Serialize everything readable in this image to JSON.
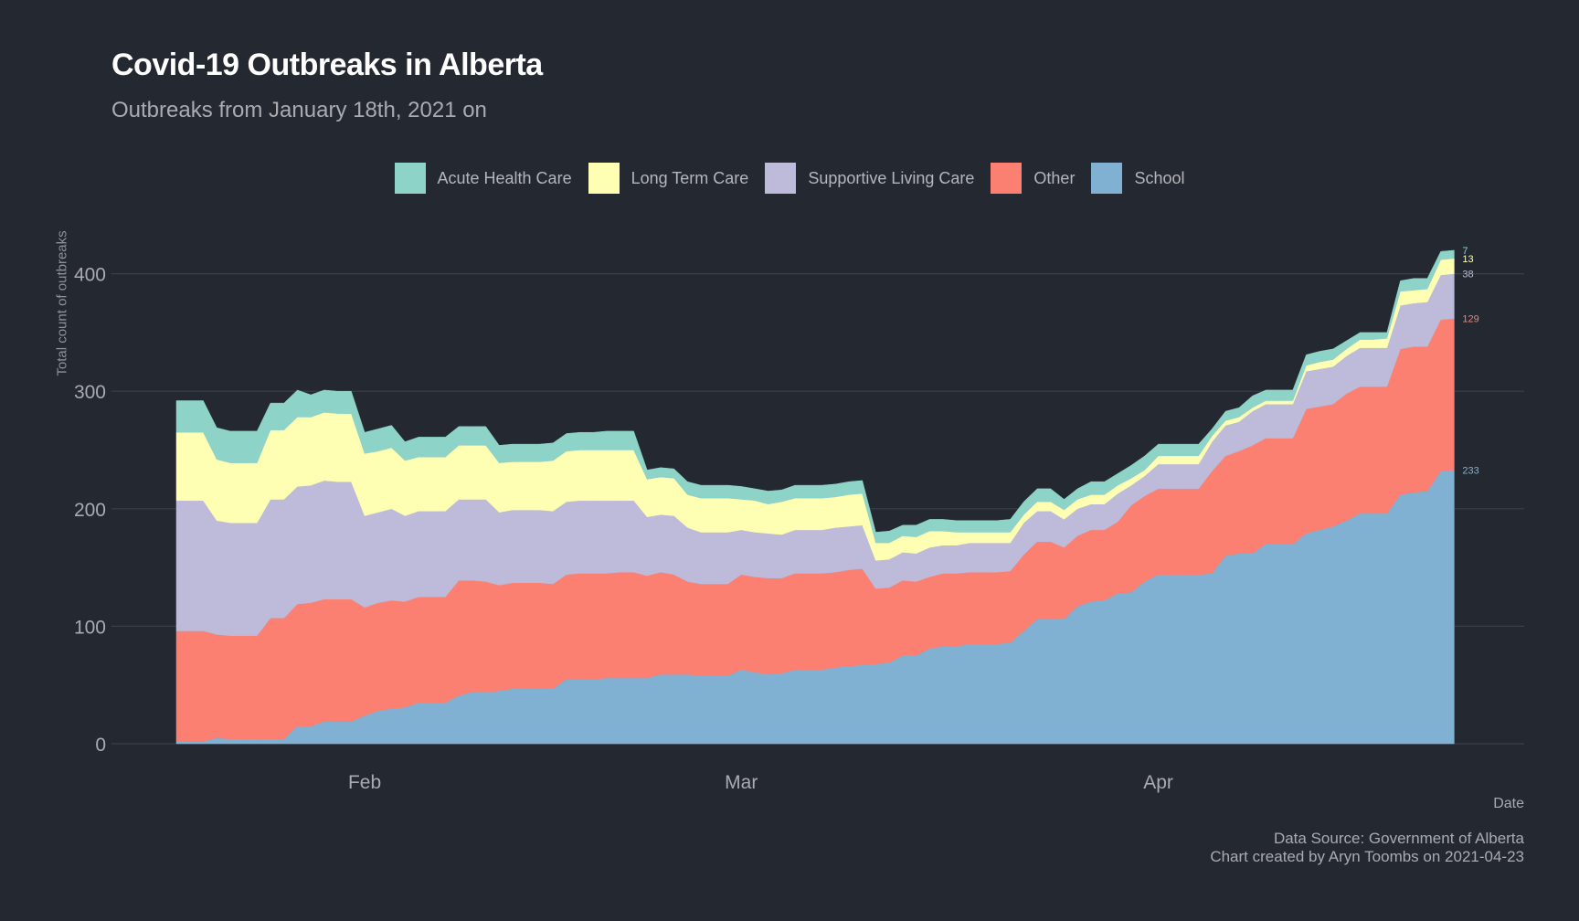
{
  "title": "Covid-19 Outbreaks in Alberta",
  "subtitle": "Outbreaks from January 18th, 2021 on",
  "caption": {
    "line1": "Data Source: Government of Alberta",
    "line2": "Chart created by Aryn Toombs on 2021-04-23"
  },
  "chart_data": {
    "type": "area",
    "stacked": true,
    "title": "Covid-19 Outbreaks in Alberta",
    "subtitle": "Outbreaks from January 18th, 2021 on",
    "xlabel": "Date",
    "ylabel": "Total count of outbreaks",
    "ylim": [
      0,
      430
    ],
    "yticks": [
      0,
      100,
      200,
      300,
      400
    ],
    "xticks": [
      {
        "date": "2021-02-01",
        "label": "Feb"
      },
      {
        "date": "2021-03-01",
        "label": "Mar"
      },
      {
        "date": "2021-04-01",
        "label": "Apr"
      }
    ],
    "grid": "horizontal",
    "legend_position": "top",
    "background": "#242831",
    "dates": [
      "2021-01-18",
      "2021-01-19",
      "2021-01-20",
      "2021-01-21",
      "2021-01-22",
      "2021-01-23",
      "2021-01-24",
      "2021-01-25",
      "2021-01-26",
      "2021-01-27",
      "2021-01-28",
      "2021-01-29",
      "2021-01-30",
      "2021-01-31",
      "2021-02-01",
      "2021-02-02",
      "2021-02-03",
      "2021-02-04",
      "2021-02-05",
      "2021-02-06",
      "2021-02-07",
      "2021-02-08",
      "2021-02-09",
      "2021-02-10",
      "2021-02-11",
      "2021-02-12",
      "2021-02-13",
      "2021-02-14",
      "2021-02-15",
      "2021-02-16",
      "2021-02-17",
      "2021-02-18",
      "2021-02-19",
      "2021-02-20",
      "2021-02-21",
      "2021-02-22",
      "2021-02-23",
      "2021-02-24",
      "2021-02-25",
      "2021-02-26",
      "2021-02-27",
      "2021-02-28",
      "2021-03-01",
      "2021-03-02",
      "2021-03-03",
      "2021-03-04",
      "2021-03-05",
      "2021-03-06",
      "2021-03-07",
      "2021-03-08",
      "2021-03-09",
      "2021-03-10",
      "2021-03-11",
      "2021-03-12",
      "2021-03-13",
      "2021-03-14",
      "2021-03-15",
      "2021-03-16",
      "2021-03-17",
      "2021-03-18",
      "2021-03-19",
      "2021-03-20",
      "2021-03-21",
      "2021-03-22",
      "2021-03-23",
      "2021-03-24",
      "2021-03-25",
      "2021-03-26",
      "2021-03-27",
      "2021-03-28",
      "2021-03-29",
      "2021-03-30",
      "2021-03-31",
      "2021-04-01",
      "2021-04-02",
      "2021-04-03",
      "2021-04-04",
      "2021-04-05",
      "2021-04-06",
      "2021-04-07",
      "2021-04-08",
      "2021-04-09",
      "2021-04-10",
      "2021-04-11",
      "2021-04-12",
      "2021-04-13",
      "2021-04-14",
      "2021-04-15",
      "2021-04-16",
      "2021-04-17",
      "2021-04-18",
      "2021-04-19",
      "2021-04-20",
      "2021-04-21",
      "2021-04-22",
      "2021-04-23"
    ],
    "series": [
      {
        "name": "School",
        "color": "#80b1d3",
        "end_label": "233",
        "values": [
          2,
          2,
          2,
          5,
          4,
          4,
          4,
          4,
          4,
          15,
          15,
          19,
          19,
          19,
          24,
          28,
          30,
          31,
          35,
          35,
          35,
          41,
          44,
          44,
          45,
          47,
          47,
          47,
          47,
          55,
          55,
          55,
          56,
          56,
          56,
          56,
          59,
          59,
          59,
          58,
          58,
          58,
          63,
          61,
          59,
          60,
          63,
          63,
          63,
          65,
          66,
          67,
          68,
          69,
          75,
          75,
          81,
          83,
          83,
          85,
          85,
          85,
          86,
          96,
          106,
          106,
          106,
          117,
          121,
          122,
          128,
          129,
          138,
          144,
          144,
          144,
          144,
          145,
          160,
          162,
          162,
          170,
          170,
          170,
          179,
          182,
          185,
          190,
          196,
          196,
          196,
          212,
          214,
          215,
          232,
          233
        ]
      },
      {
        "name": "Other",
        "color": "#fb8072",
        "end_label": "129",
        "values": [
          94,
          94,
          94,
          88,
          88,
          88,
          88,
          103,
          103,
          104,
          105,
          104,
          104,
          104,
          92,
          92,
          92,
          90,
          90,
          90,
          90,
          98,
          95,
          94,
          90,
          90,
          90,
          90,
          89,
          89,
          90,
          90,
          89,
          90,
          90,
          87,
          87,
          85,
          79,
          78,
          78,
          78,
          81,
          81,
          82,
          81,
          82,
          82,
          82,
          81,
          82,
          82,
          64,
          64,
          64,
          63,
          61,
          62,
          62,
          61,
          61,
          61,
          61,
          65,
          66,
          66,
          61,
          60,
          61,
          60,
          61,
          74,
          73,
          73,
          73,
          73,
          73,
          87,
          85,
          87,
          92,
          90,
          90,
          90,
          106,
          105,
          104,
          108,
          108,
          108,
          108,
          124,
          124,
          123,
          129,
          129
        ]
      },
      {
        "name": "Supportive Living Care",
        "color": "#bebada",
        "end_label": "38",
        "values": [
          111,
          111,
          111,
          97,
          96,
          96,
          96,
          101,
          101,
          100,
          100,
          101,
          100,
          100,
          78,
          77,
          78,
          73,
          73,
          73,
          73,
          69,
          69,
          70,
          62,
          62,
          62,
          62,
          62,
          62,
          62,
          62,
          62,
          61,
          61,
          50,
          49,
          50,
          46,
          44,
          44,
          44,
          38,
          38,
          38,
          37,
          37,
          37,
          37,
          38,
          37,
          37,
          24,
          24,
          24,
          24,
          25,
          24,
          24,
          25,
          25,
          25,
          24,
          27,
          26,
          26,
          24,
          23,
          22,
          22,
          24,
          17,
          17,
          21,
          21,
          21,
          21,
          25,
          26,
          25,
          29,
          29,
          29,
          29,
          32,
          32,
          32,
          32,
          33,
          33,
          33,
          37,
          37,
          38,
          38,
          38
        ]
      },
      {
        "name": "Long Term Care",
        "color": "#ffffb3",
        "end_label": "13",
        "values": [
          58,
          58,
          58,
          52,
          51,
          51,
          51,
          59,
          59,
          59,
          58,
          58,
          58,
          58,
          53,
          52,
          52,
          47,
          46,
          46,
          46,
          46,
          46,
          46,
          42,
          41,
          41,
          41,
          43,
          43,
          43,
          43,
          43,
          43,
          43,
          32,
          32,
          32,
          28,
          29,
          29,
          29,
          26,
          27,
          25,
          28,
          27,
          27,
          27,
          26,
          27,
          27,
          15,
          14,
          14,
          14,
          14,
          12,
          11,
          9,
          9,
          9,
          9,
          7,
          8,
          8,
          8,
          8,
          8,
          8,
          7,
          6,
          5,
          7,
          7,
          7,
          7,
          5,
          4,
          4,
          3,
          3,
          3,
          3,
          5,
          6,
          6,
          6,
          7,
          7,
          8,
          12,
          11,
          11,
          13,
          13
        ]
      },
      {
        "name": "Acute Health Care",
        "color": "#8dd3c7",
        "end_label": "7",
        "values": [
          27,
          27,
          27,
          27,
          27,
          27,
          27,
          23,
          23,
          23,
          19,
          19,
          19,
          19,
          18,
          19,
          19,
          16,
          17,
          17,
          17,
          16,
          16,
          16,
          15,
          15,
          15,
          15,
          15,
          15,
          15,
          15,
          16,
          16,
          16,
          8,
          8,
          8,
          11,
          11,
          11,
          11,
          11,
          10,
          11,
          10,
          11,
          11,
          11,
          11,
          11,
          11,
          9,
          10,
          9,
          10,
          10,
          10,
          10,
          10,
          10,
          10,
          11,
          11,
          11,
          11,
          9,
          9,
          11,
          11,
          10,
          11,
          12,
          10,
          10,
          10,
          10,
          6,
          8,
          8,
          10,
          9,
          9,
          9,
          9,
          9,
          9,
          7,
          6,
          6,
          5,
          9,
          10,
          9,
          7,
          7
        ]
      }
    ],
    "legend_order": [
      "Acute Health Care",
      "Long Term Care",
      "Supportive Living Care",
      "Other",
      "School"
    ]
  }
}
